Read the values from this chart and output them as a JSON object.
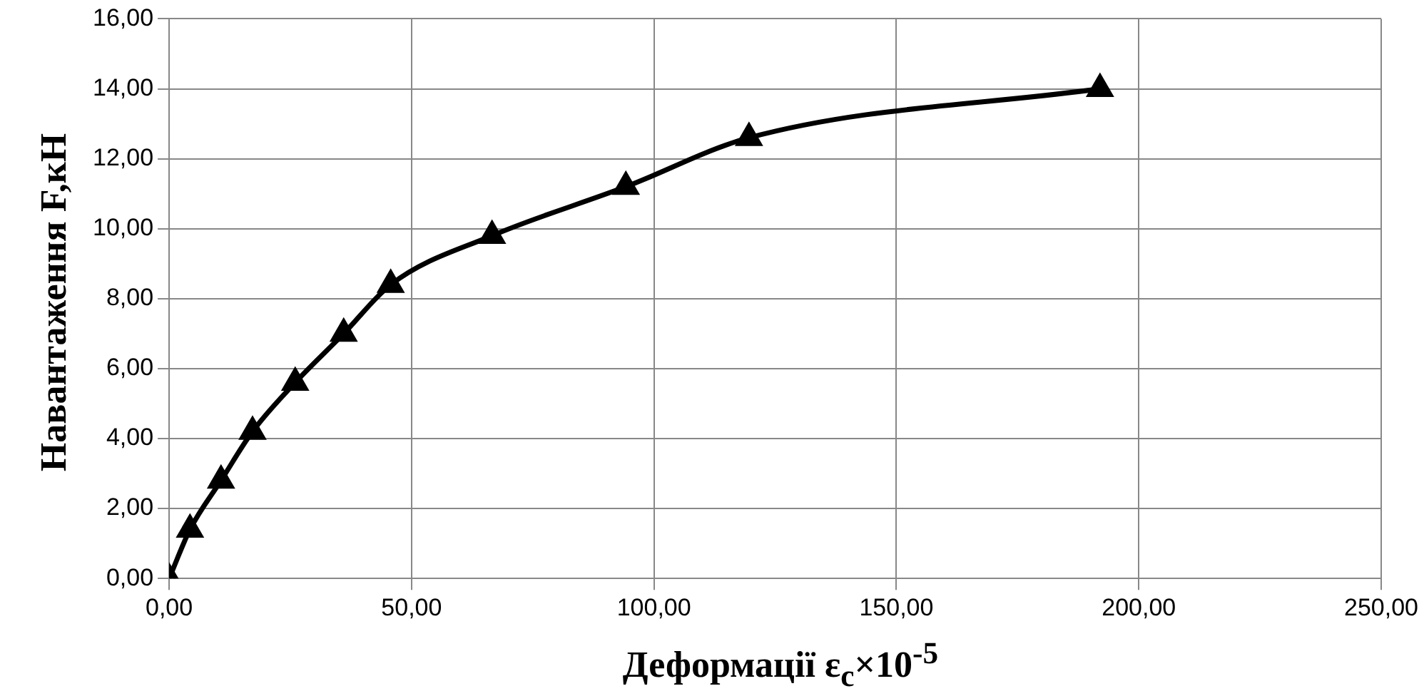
{
  "chart_data": {
    "type": "line",
    "xlabel": "Деформації ε$_{c}$×10$^{-5}$",
    "ylabel": "Навантаження F,кН",
    "x": [
      0,
      4.3,
      10.7,
      17.2,
      26,
      36,
      45.7,
      66.6,
      94.2,
      119.6,
      192
    ],
    "series": [
      {
        "color": "#000000",
        "values": [
          0,
          1.4,
          2.8,
          4.2,
          5.6,
          7.0,
          8.4,
          9.8,
          11.2,
          12.6,
          14.0
        ]
      }
    ],
    "xlim": [
      0,
      250
    ],
    "xticks": [
      {
        "value": 0,
        "label": "0,00"
      },
      {
        "value": 50,
        "label": "50,00"
      },
      {
        "value": 100,
        "label": "100,00"
      },
      {
        "value": 150,
        "label": "150,00"
      },
      {
        "value": 200,
        "label": "200,00"
      },
      {
        "value": 250,
        "label": "250,00"
      }
    ],
    "ylim": [
      0,
      16
    ],
    "yticks": [
      {
        "value": 0,
        "label": "0,00"
      },
      {
        "value": 2,
        "label": "2,00"
      },
      {
        "value": 4,
        "label": "4,00"
      },
      {
        "value": 6,
        "label": "6,00"
      },
      {
        "value": 8,
        "label": "8,00"
      },
      {
        "value": 10,
        "label": "10,00"
      },
      {
        "value": 12,
        "label": "12,00"
      },
      {
        "value": 14,
        "label": "14,00"
      },
      {
        "value": 16,
        "label": "16,00"
      }
    ],
    "grid": true,
    "legend": false,
    "marker": "triangle",
    "line_style": "solid"
  }
}
